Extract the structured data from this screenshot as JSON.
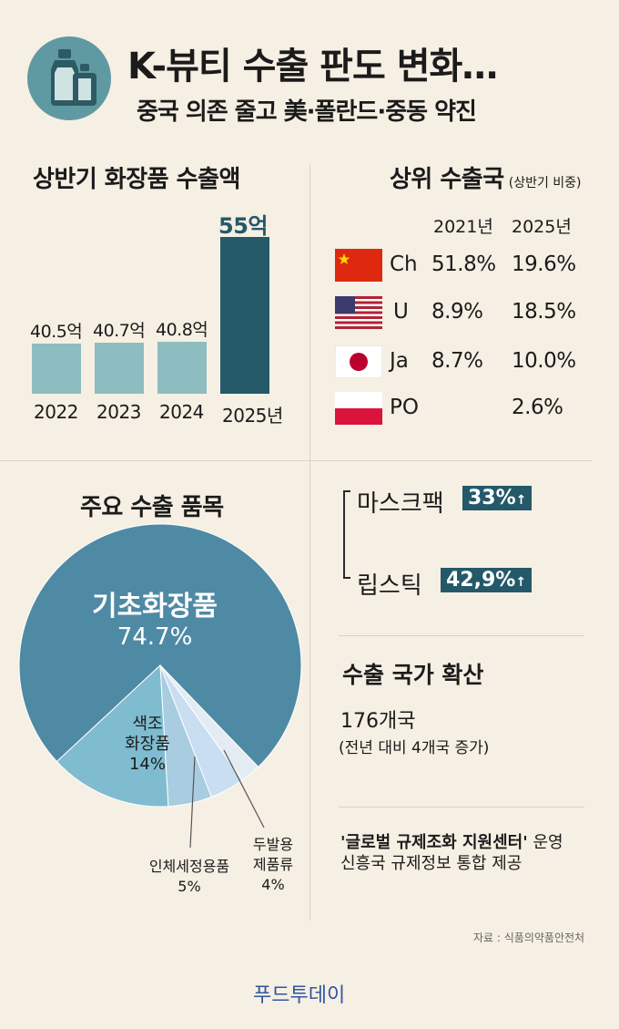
{
  "header": {
    "title": "K-뷰티 수출 판도 변화…",
    "subtitle": "중국 의존 줄고 美·폴란드·중동 약진"
  },
  "export_amount": {
    "title": "상반기 화장품 수출액"
  },
  "top_countries": {
    "title": "상위 수출국",
    "title_note": "(상반기 비중)",
    "columns": [
      "2021년",
      "2025년"
    ],
    "rows": [
      {
        "country": "Ch",
        "flag": "china-flag",
        "v2021": "51.8%",
        "v2025": "19.6%"
      },
      {
        "country": "U",
        "flag": "usa-flag",
        "v2021": "8.9%",
        "v2025": "18.5%"
      },
      {
        "country": "Ja",
        "flag": "japan-flag",
        "v2021": "8.7%",
        "v2025": "10.0%"
      },
      {
        "country": "PO",
        "flag": "poland-flag",
        "v2021": "",
        "v2025": "2.6%"
      }
    ]
  },
  "major_items": {
    "title": "주요 수출 품목"
  },
  "growth_items": [
    {
      "name": "마스크팩",
      "badge": "33%"
    },
    {
      "name": "립스틱",
      "badge": "42,9%"
    }
  ],
  "expansion": {
    "title": "수출 국가 확산",
    "count": "176개국",
    "note": "(전년 대비 4개국 증가)"
  },
  "center": {
    "name": "'글로벌 규제조화 지원센터'",
    "suffix": " 운영",
    "line2": "신흥국 규제정보 통합 제공"
  },
  "source": "자료 : 식품의약품안전처",
  "footer": "푸드투데이",
  "colors": {
    "bar": "#8dbdc1",
    "bar_highlight": "#24596a",
    "pie_main": "#4f8aa5",
    "pie_color": "#7fbccf",
    "pie_body": "#a8cce0",
    "pie_hair": "#c9def0",
    "pie_rest": "#e3ecf2",
    "badge": "#24596a"
  },
  "chart_data": [
    {
      "type": "bar",
      "title": "상반기 화장품 수출액",
      "categories": [
        "2022",
        "2023",
        "2024",
        "2025년"
      ],
      "values": [
        40.5,
        40.7,
        40.8,
        55
      ],
      "value_labels": [
        "40.5억",
        "40.7억",
        "40.8억",
        "55억"
      ],
      "unit": "억",
      "highlight_index": 3
    },
    {
      "type": "pie",
      "title": "주요 수출 품목",
      "slices": [
        {
          "label": "기초화장품",
          "value": 74.7,
          "display": "74.7%"
        },
        {
          "label": "색조 화장품",
          "label_lines": [
            "색조",
            "화장품"
          ],
          "value": 14,
          "display": "14%"
        },
        {
          "label": "인체세정용품",
          "value": 5,
          "display": "5%"
        },
        {
          "label": "두발용 제품류",
          "label_lines": [
            "두발용",
            "제품류"
          ],
          "value": 4,
          "display": "4%"
        },
        {
          "label": "",
          "value": 2.3,
          "display": ""
        }
      ]
    }
  ]
}
